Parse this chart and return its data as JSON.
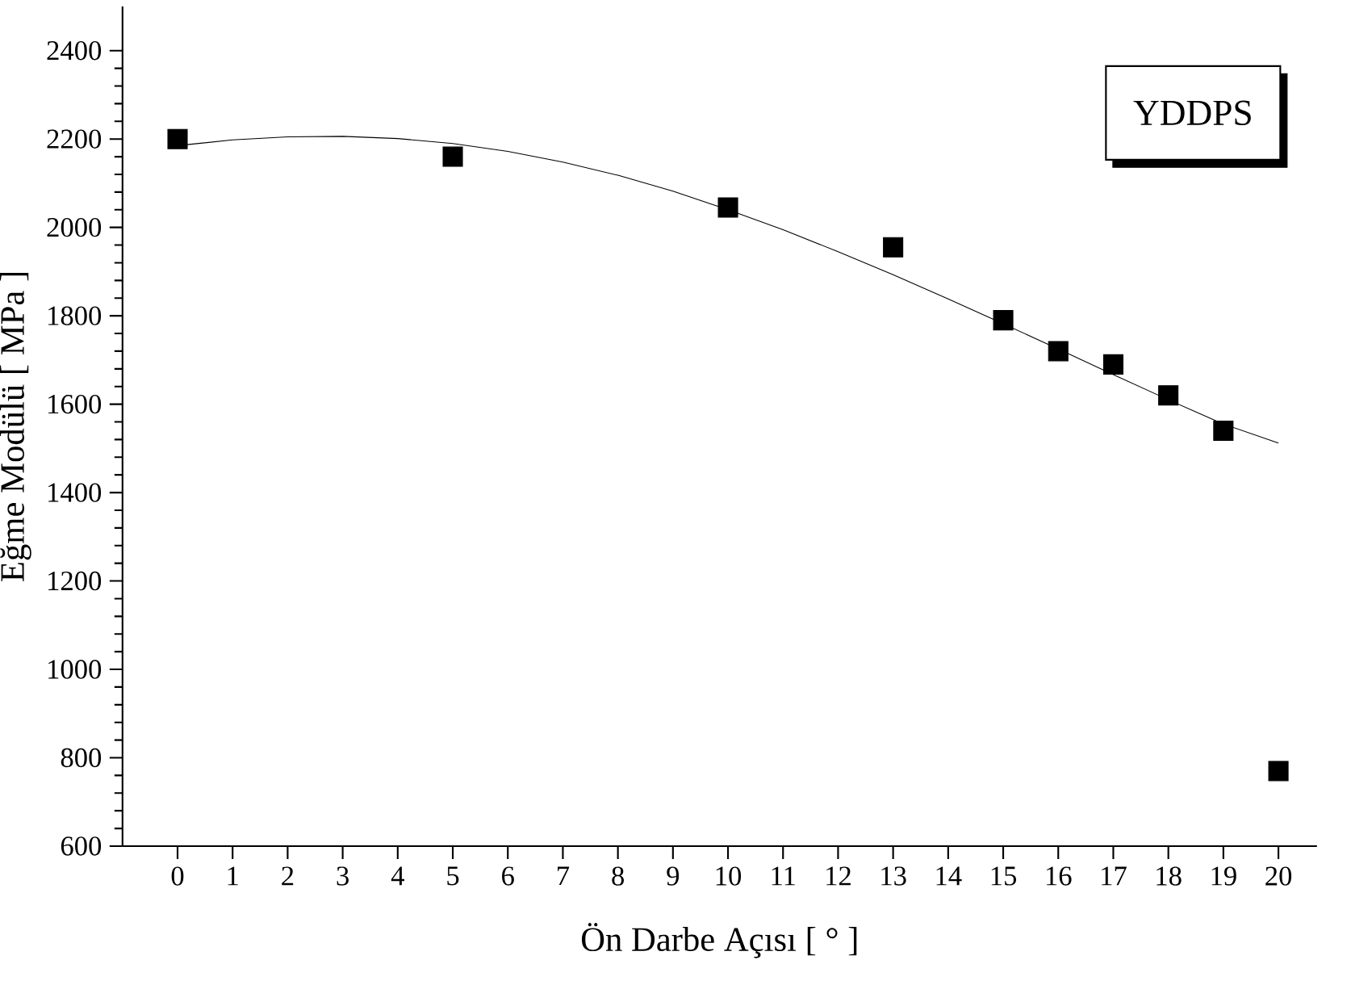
{
  "chart_data": {
    "type": "scatter",
    "xlabel": "Ön Darbe Açısı [ ° ]",
    "ylabel": "Eğme Modülü    [ MPa ]",
    "annotations": [
      "YDDPS"
    ],
    "x": [
      0,
      5,
      10,
      13,
      15,
      16,
      17,
      18,
      19,
      20
    ],
    "series": [
      {
        "type": "scatter",
        "color": "#000000",
        "marker": "square",
        "values": [
          2200,
          2160,
          2045,
          1955,
          1790,
          1720,
          1690,
          1620,
          1540,
          770
        ]
      },
      {
        "type": "line",
        "color": "#000000",
        "marker": "none",
        "x": [
          0,
          1,
          2,
          3,
          4,
          5,
          6,
          7,
          8,
          9,
          10,
          11,
          12,
          13,
          14,
          15,
          16,
          17,
          18,
          19,
          20
        ],
        "values": [
          2185,
          2198,
          2205,
          2206,
          2201,
          2190,
          2172,
          2148,
          2118,
          2082,
          2040,
          1995,
          1945,
          1893,
          1838,
          1782,
          1725,
          1667,
          1610,
          1555,
          1512
        ]
      }
    ],
    "xlim": [
      -1,
      20.7
    ],
    "ylim": [
      600,
      2500
    ],
    "xticks": [
      0,
      1,
      2,
      3,
      4,
      5,
      6,
      7,
      8,
      9,
      10,
      11,
      12,
      13,
      14,
      15,
      16,
      17,
      18,
      19,
      20
    ],
    "yticks": [
      600,
      800,
      1000,
      1200,
      1400,
      1600,
      1800,
      2000,
      2200,
      2400
    ]
  }
}
